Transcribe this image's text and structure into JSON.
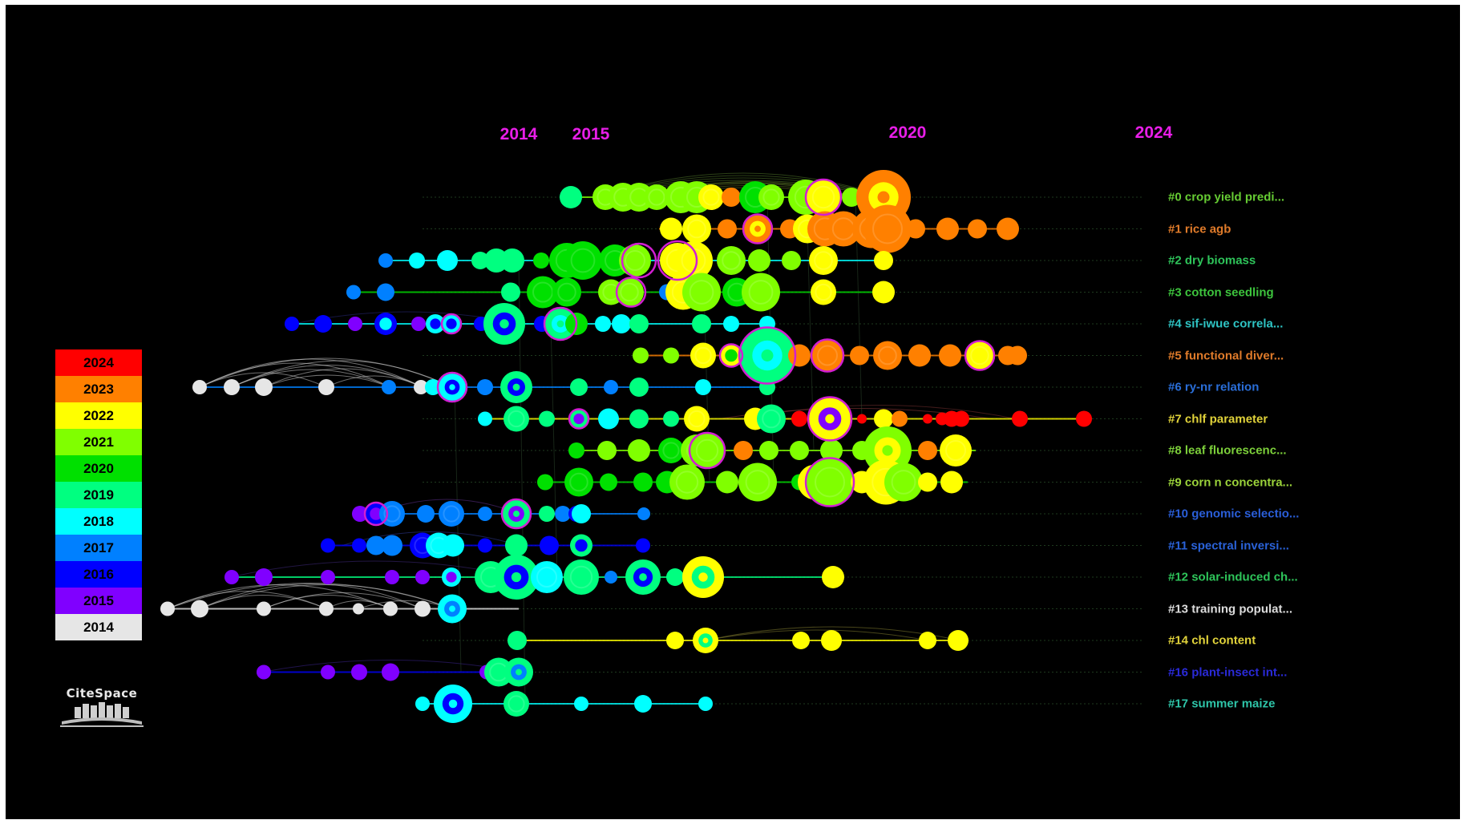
{
  "years": [
    {
      "label": "2014",
      "x": 2014
    },
    {
      "label": "2015",
      "x": 2015
    },
    {
      "label": "2020",
      "x": 2020
    },
    {
      "label": "2024",
      "x": 2024
    }
  ],
  "legend": [
    {
      "year": "2024",
      "color": "#ff0000"
    },
    {
      "year": "2023",
      "color": "#ff8000"
    },
    {
      "year": "2022",
      "color": "#ffff00"
    },
    {
      "year": "2021",
      "color": "#80ff00"
    },
    {
      "year": "2020",
      "color": "#00e000"
    },
    {
      "year": "2019",
      "color": "#00ff80"
    },
    {
      "year": "2018",
      "color": "#00ffff"
    },
    {
      "year": "2017",
      "color": "#0080ff"
    },
    {
      "year": "2016",
      "color": "#0000ff"
    },
    {
      "year": "2015",
      "color": "#8000ff"
    },
    {
      "year": "2014",
      "color": "#e6e6e6"
    }
  ],
  "clusters": [
    {
      "label": "#0 crop yield predi...",
      "color": "#66cc33"
    },
    {
      "label": "#1 rice agb",
      "color": "#e07b2a"
    },
    {
      "label": "#2 dry biomass",
      "color": "#2ec45a"
    },
    {
      "label": "#3 cotton seedling",
      "color": "#3dc43d"
    },
    {
      "label": "#4 sif-iwue correla...",
      "color": "#2ec4c4"
    },
    {
      "label": "#5 functional diver...",
      "color": "#e07b2a"
    },
    {
      "label": "#6 ry-nr relation",
      "color": "#2a6ed8"
    },
    {
      "label": "#7 chlf parameter",
      "color": "#e0d23a"
    },
    {
      "label": "#8 leaf fluorescenc...",
      "color": "#7ccf3a"
    },
    {
      "label": "#9 corn n concentra...",
      "color": "#9ad23a"
    },
    {
      "label": "#10 genomic selectio...",
      "color": "#2a5ed8"
    },
    {
      "label": "#11 spectral inversi...",
      "color": "#2a62d8"
    },
    {
      "label": "#12 solar-induced ch...",
      "color": "#2ec45a"
    },
    {
      "label": "#13 training populat...",
      "color": "#dcdcdc"
    },
    {
      "label": "#14 chl content",
      "color": "#e0d23a"
    },
    {
      "label": "#16 plant-insect int...",
      "color": "#2a2ad8"
    },
    {
      "label": "#17 summer maize",
      "color": "#2ec4a8"
    }
  ],
  "logo": {
    "text": "CiteSpace"
  }
}
